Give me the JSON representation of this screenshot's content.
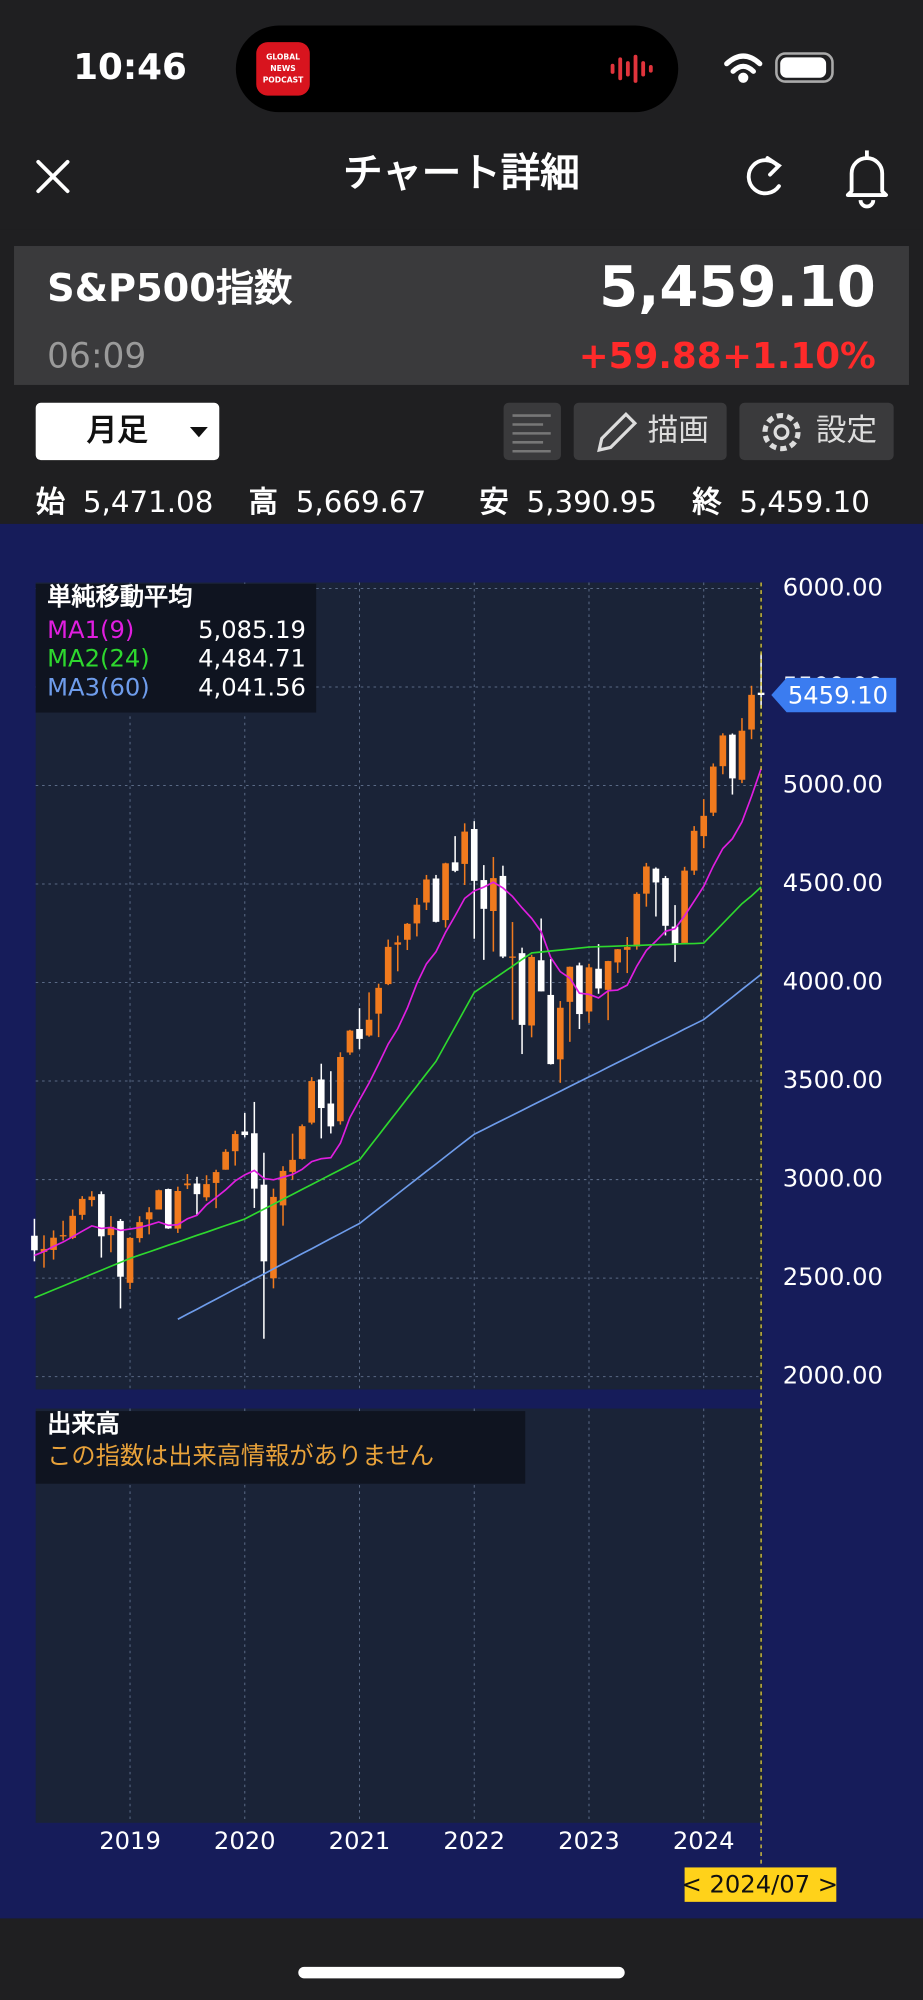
{
  "status_bar": {
    "time": "10:46",
    "app_icon_text": [
      "GLOBAL",
      "NEWS",
      "PODCAST"
    ]
  },
  "header": {
    "title": "チャート詳細"
  },
  "quote": {
    "name": "S&P500指数",
    "time": "06:09",
    "price": "5,459.10",
    "change": "+59.88",
    "change_percent": "+1.10%"
  },
  "toolbar": {
    "period": "月足",
    "draw": "描画",
    "settings": "設定"
  },
  "ohlc": [
    {
      "label": "始",
      "value": "5,471.08"
    },
    {
      "label": "高",
      "value": "5,669.67"
    },
    {
      "label": "安",
      "value": "5,390.95"
    },
    {
      "label": "終",
      "value": "5,459.10"
    }
  ],
  "chart_data": {
    "type": "candlestick",
    "legend_title": "単純移動平均",
    "categories": [
      null,
      null,
      null,
      null,
      null,
      null,
      null,
      null,
      null,
      null,
      "2019",
      null,
      null,
      null,
      null,
      null,
      null,
      null,
      null,
      null,
      null,
      null,
      "2020",
      null,
      null,
      null,
      null,
      null,
      null,
      null,
      null,
      null,
      null,
      null,
      "2021",
      null,
      null,
      null,
      null,
      null,
      null,
      null,
      null,
      null,
      null,
      null,
      "2022",
      null,
      null,
      null,
      null,
      null,
      null,
      null,
      null,
      null,
      null,
      null,
      "2023",
      null,
      null,
      null,
      null,
      null,
      null,
      null,
      null,
      null,
      null,
      null,
      "2024",
      null,
      null,
      null,
      null,
      null,
      null
    ],
    "open": [
      2715,
      2633,
      2643,
      2718,
      2704,
      2821,
      2896,
      2926,
      2718,
      2790,
      2476,
      2703,
      2798,
      2848,
      2952,
      2751,
      2971,
      2980,
      2910,
      2983,
      3050,
      3144,
      3244,
      3235,
      2974,
      2499,
      2869,
      3039,
      3105,
      3289,
      3508,
      3386,
      3296,
      3645,
      3764,
      3731,
      3842,
      3992,
      4192,
      4217,
      4300,
      4406,
      4528,
      4317,
      4610,
      4602,
      4779,
      4520,
      4363,
      4541,
      4131,
      4149,
      3782,
      4113,
      3937,
      3610,
      3902,
      4087,
      3853,
      4070,
      3963,
      4102,
      4166,
      4183,
      4451,
      4578,
      4530,
      4284,
      4201,
      4568,
      4743,
      4862,
      5098,
      5258,
      5029,
      5284,
      5471.08
    ],
    "high": [
      2801,
      2717,
      2742,
      2791,
      2848,
      2916,
      2941,
      2940,
      2815,
      2800,
      2708,
      2814,
      2860,
      2949,
      2954,
      2964,
      3028,
      3014,
      3022,
      3050,
      3154,
      3248,
      3338,
      3394,
      3136,
      2954,
      3068,
      3233,
      3280,
      3520,
      3588,
      3550,
      3646,
      3760,
      3870,
      3950,
      3994,
      4218,
      4238,
      4302,
      4429,
      4546,
      4546,
      4608,
      4743,
      4808,
      4819,
      4596,
      4637,
      4593,
      4307,
      4177,
      4141,
      4325,
      4119,
      3906,
      4081,
      4101,
      4095,
      4195,
      4110,
      4170,
      4231,
      4458,
      4607,
      4584,
      4541,
      4393,
      4587,
      4794,
      4931,
      5112,
      5265,
      5264,
      5342,
      5506,
      5669.67
    ],
    "low": [
      2585,
      2553,
      2594,
      2691,
      2698,
      2796,
      2864,
      2604,
      2631,
      2346,
      2444,
      2681,
      2722,
      2848,
      2750,
      2729,
      2952,
      2822,
      2892,
      2855,
      3050,
      3071,
      3214,
      2856,
      2192,
      2448,
      2766,
      2999,
      3101,
      3280,
      3209,
      3234,
      3279,
      3633,
      3662,
      3725,
      3723,
      3987,
      4057,
      4165,
      4234,
      4368,
      4305,
      4279,
      4560,
      4495,
      4222,
      4115,
      4157,
      4124,
      3811,
      3637,
      3722,
      3955,
      3584,
      3491,
      3699,
      3764,
      3795,
      3943,
      3809,
      4049,
      4048,
      4167,
      4385,
      4335,
      4239,
      4104,
      4197,
      4546,
      4682,
      4845,
      5057,
      4954,
      5012,
      5235,
      5390.95
    ],
    "close": [
      2641,
      2648,
      2705,
      2718,
      2816,
      2902,
      2914,
      2712,
      2760,
      2507,
      2704,
      2784,
      2834,
      2946,
      2752,
      2942,
      2980,
      2926,
      2977,
      3038,
      3141,
      3231,
      3226,
      2954,
      2585,
      2912,
      3044,
      3100,
      3271,
      3500,
      3363,
      3270,
      3622,
      3756,
      3714,
      3811,
      3973,
      4181,
      4204,
      4298,
      4395,
      4523,
      4308,
      4605,
      4567,
      4766,
      4516,
      4374,
      4530,
      4132,
      4132,
      3785,
      4130,
      3955,
      3586,
      3872,
      4080,
      3840,
      4077,
      3970,
      4109,
      4169,
      4180,
      4450,
      4589,
      4508,
      4288,
      4194,
      4568,
      4770,
      4846,
      5096,
      5254,
      5036,
      5278,
      5460,
      5459.1
    ],
    "up_color": "#f07a1e",
    "down_color": "#ffffff",
    "series": [
      {
        "name": "MA1(9)",
        "color": "#e01ee0",
        "legend_value": "5,085.19",
        "values": [
          2615,
          2635,
          2661,
          2683,
          2710,
          2738,
          2765,
          2752,
          2757,
          2742,
          2749,
          2757,
          2770,
          2785,
          2768,
          2771,
          2801,
          2819,
          2872,
          2909,
          2948,
          2993,
          3024,
          3046,
          3006,
          2999,
          3012,
          3026,
          3052,
          3091,
          3106,
          3111,
          3185,
          3315,
          3404,
          3490,
          3587,
          3688,
          3766,
          3870,
          3995,
          4095,
          4156,
          4255,
          4339,
          4427,
          4465,
          4484,
          4509,
          4480,
          4437,
          4379,
          4326,
          4258,
          4127,
          4055,
          4022,
          3946,
          3940,
          3922,
          3958,
          3962,
          3987,
          4083,
          4163,
          4210,
          4260,
          4273,
          4339,
          4413,
          4488,
          4591,
          4680,
          4730,
          4815,
          4945,
          5085.19
        ]
      },
      {
        "name": "MA2(24)",
        "color": "#2ed82e",
        "legend_value": "4,484.71",
        "values": [
          2400,
          2420,
          2440,
          2460,
          2480,
          2500,
          2520,
          2540,
          2560,
          2580,
          2600,
          2617,
          2633,
          2650,
          2667,
          2683,
          2700,
          2717,
          2733,
          2750,
          2767,
          2783,
          2800,
          2825,
          2850,
          2875,
          2900,
          2925,
          2950,
          2975,
          3000,
          3025,
          3050,
          3075,
          3100,
          3163,
          3225,
          3288,
          3350,
          3413,
          3475,
          3538,
          3600,
          3688,
          3775,
          3863,
          3950,
          3983,
          4017,
          4050,
          4083,
          4117,
          4150,
          4155,
          4160,
          4165,
          4170,
          4175,
          4180,
          4182,
          4183,
          4185,
          4187,
          4188,
          4190,
          4192,
          4193,
          4195,
          4197,
          4198,
          4200,
          4250,
          4300,
          4350,
          4400,
          4440,
          4484.71
        ]
      },
      {
        "name": "MA3(60)",
        "color": "#6e9ceb",
        "legend_value": "4,041.56",
        "values": [
          null,
          null,
          null,
          null,
          null,
          null,
          null,
          null,
          null,
          null,
          null,
          null,
          null,
          null,
          null,
          2291,
          2317,
          2342,
          2368,
          2393,
          2419,
          2445,
          2470,
          2496,
          2521,
          2547,
          2573,
          2598,
          2624,
          2649,
          2675,
          2701,
          2726,
          2752,
          2777,
          2815,
          2853,
          2890,
          2928,
          2966,
          3004,
          3042,
          3079,
          3117,
          3155,
          3193,
          3230,
          3254,
          3279,
          3303,
          3327,
          3351,
          3376,
          3400,
          3424,
          3448,
          3473,
          3497,
          3521,
          3545,
          3570,
          3594,
          3618,
          3642,
          3667,
          3691,
          3715,
          3739,
          3764,
          3788,
          3812,
          3850,
          3888,
          3926,
          3965,
          4003,
          4041.56
        ]
      }
    ],
    "ylim": [
      1935,
      6030
    ],
    "yticks": [
      {
        "value": 2000,
        "label": "2000.00"
      },
      {
        "value": 2500,
        "label": "2500.00"
      },
      {
        "value": 3000,
        "label": "3000.00"
      },
      {
        "value": 3500,
        "label": "3500.00"
      },
      {
        "value": 4000,
        "label": "4000.00"
      },
      {
        "value": 4500,
        "label": "4500.00"
      },
      {
        "value": 5000,
        "label": "5000.00"
      },
      {
        "value": 5500,
        "label": "5500.00"
      },
      {
        "value": 6000,
        "label": "6000.00"
      }
    ],
    "grid": true,
    "price_tag": {
      "value": 5459.1,
      "label": "5459.10"
    },
    "cursor_label": "< 2024/07 >",
    "volume_title": "出来高",
    "volume_message": "この指数は出来高情報がありません"
  }
}
